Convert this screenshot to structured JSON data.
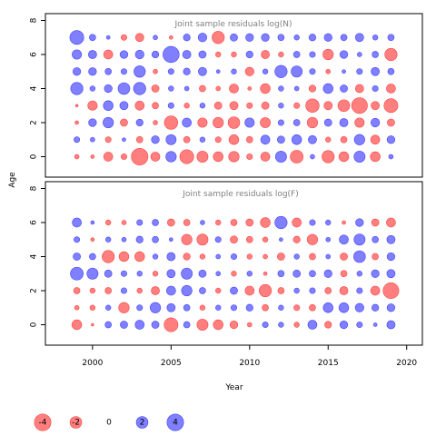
{
  "chart_data": {
    "type": "scatter",
    "encoding": "bubble",
    "x_label": "Year",
    "y_label": "Age",
    "xlim": [
      1997,
      2021
    ],
    "ylim": [
      -1.2,
      8.4
    ],
    "x_ticks": [
      2000,
      2005,
      2010,
      2015,
      2020
    ],
    "y_ticks": [
      0,
      2,
      4,
      6,
      8
    ],
    "colors": {
      "positive": "#0000FF",
      "negative": "#FF0000",
      "fill_opacity": 0.5
    },
    "years": [
      1999,
      2000,
      2001,
      2002,
      2003,
      2004,
      2005,
      2006,
      2007,
      2008,
      2009,
      2010,
      2011,
      2012,
      2013,
      2014,
      2015,
      2016,
      2017,
      2018,
      2019
    ],
    "ages": [
      0,
      1,
      2,
      3,
      4,
      5,
      6,
      7
    ],
    "panels": [
      {
        "title": "Joint sample residuals log(N)",
        "residuals": [
          [
            -0.3,
            -0.2,
            -1.2,
            -0.5,
            -4.0,
            -1.2,
            1.6,
            -2.8,
            -1.8,
            -1.4,
            -1.6,
            -0.5,
            -1.2,
            1.8,
            -2.4,
            0.3,
            -2.2,
            -1.4,
            1.8,
            -1.4,
            0.3
          ],
          [
            0.5,
            0.3,
            -0.5,
            0.2,
            -0.6,
            0.9,
            1.5,
            -0.6,
            0.4,
            -0.5,
            -1.4,
            -0.6,
            1.2,
            0.8,
            1.4,
            1.0,
            -0.4,
            -0.6,
            1.6,
            -1.2,
            0.9
          ],
          [
            -0.2,
            0.9,
            1.6,
            -0.8,
            0.7,
            -0.3,
            -2.6,
            1.2,
            -1.3,
            -1.6,
            -2.0,
            1.3,
            -1.5,
            0.5,
            0.6,
            -1.6,
            0.8,
            1.0,
            -1.3,
            1.1,
            -0.8
          ],
          [
            -0.1,
            -1.3,
            1.4,
            1.0,
            -1.2,
            -0.6,
            0.5,
            -0.4,
            0.4,
            -0.8,
            -1.0,
            -0.5,
            -0.8,
            0.4,
            -0.5,
            -2.6,
            -1.0,
            -2.0,
            -3.6,
            -1.0,
            -2.8
          ],
          [
            2.2,
            0.4,
            0.9,
            2.0,
            2.2,
            -0.8,
            0.4,
            0.3,
            -0.6,
            -0.3,
            -1.2,
            -0.2,
            -1.4,
            0.4,
            0.3,
            -0.7,
            1.4,
            0.8,
            -1.0,
            0.5,
            -1.2
          ],
          [
            0.9,
            0.9,
            0.6,
            0.5,
            1.9,
            -0.3,
            0.5,
            0.7,
            1.0,
            0.2,
            0.4,
            -1.1,
            0.4,
            2.2,
            1.8,
            0.5,
            -0.3,
            0.2,
            0.5,
            1.0,
            0.6
          ],
          [
            1.3,
            1.0,
            -1.2,
            0.9,
            1.1,
            0.7,
            3.8,
            1.0,
            0.8,
            -0.4,
            -0.4,
            0.7,
            -1.0,
            -0.4,
            0.6,
            0.5,
            -1.6,
            0.9,
            0.3,
            0.6,
            -2.2
          ],
          [
            2.8,
            0.6,
            0.2,
            -0.5,
            -1.0,
            0.3,
            -0.2,
            0.7,
            1.1,
            -2.2,
            0.8,
            0.9,
            0.9,
            0.6,
            0.4,
            0.7,
            0.9,
            0.6,
            1.0,
            0.4,
            0.6
          ]
        ]
      },
      {
        "title": "Joint sample residuals log(F)",
        "residuals": [
          [
            -1.4,
            -0.1,
            0.6,
            0.8,
            1.2,
            0.8,
            -2.8,
            0.6,
            -1.8,
            -1.4,
            -0.9,
            -0.3,
            0.5,
            0.4,
            -0.4,
            1.2,
            -0.7,
            0.9,
            0.5,
            0.2,
            1.0
          ],
          [
            -0.3,
            -0.4,
            0.4,
            -1.6,
            0.5,
            1.6,
            1.0,
            0.6,
            -0.4,
            0.4,
            0.5,
            0.7,
            -0.6,
            0.4,
            -0.5,
            -0.6,
            1.4,
            1.4,
            1.1,
            0.7,
            0.9
          ],
          [
            -0.6,
            -0.4,
            -0.6,
            0.5,
            -0.4,
            -1.0,
            1.2,
            1.6,
            0.6,
            -0.4,
            0.8,
            -1.2,
            -2.2,
            -0.6,
            0.4,
            0.5,
            -0.6,
            -1.0,
            0.5,
            -1.2,
            -3.6
          ],
          [
            2.4,
            1.8,
            0.8,
            0.5,
            0.4,
            -0.4,
            1.0,
            1.8,
            0.8,
            0.3,
            -0.4,
            0.4,
            -0.2,
            0.6,
            0.8,
            0.6,
            0.9,
            -0.6,
            0.4,
            0.9,
            1.0
          ],
          [
            0.8,
            0.6,
            -2.2,
            -1.4,
            -1.4,
            0.4,
            1.0,
            -0.7,
            -0.4,
            0.3,
            0.5,
            -0.4,
            -0.3,
            -0.8,
            0.4,
            -0.6,
            0.3,
            -0.8,
            2.0,
            -0.6,
            0.9
          ],
          [
            0.5,
            -0.2,
            0.4,
            0.3,
            0.7,
            0.6,
            0.2,
            -1.6,
            -1.8,
            0.5,
            -0.8,
            -0.6,
            -0.4,
            0.2,
            -0.7,
            -1.6,
            0.3,
            1.2,
            1.8,
            0.6,
            1.0
          ],
          [
            1.2,
            0.2,
            -0.4,
            -0.3,
            0.5,
            0.6,
            -0.8,
            -0.6,
            0.3,
            -0.4,
            -0.6,
            -0.8,
            -1.4,
            2.2,
            -1.2,
            0.5,
            0.4,
            -0.2,
            0.9,
            -0.8,
            -1.2
          ],
          [
            0.0,
            0.0,
            0.0,
            0.0,
            0.0,
            0.0,
            0.0,
            0.0,
            0.0,
            0.0,
            0.0,
            0.0,
            0.0,
            0.0,
            0.0,
            0.0,
            0.0,
            0.0,
            0.0,
            0.0,
            0.0
          ]
        ]
      }
    ],
    "legend": [
      {
        "label": "-4",
        "value": -4
      },
      {
        "label": "-2",
        "value": -2
      },
      {
        "label": "0",
        "value": 0
      },
      {
        "label": "2",
        "value": 2
      },
      {
        "label": "4",
        "value": 4
      }
    ]
  }
}
